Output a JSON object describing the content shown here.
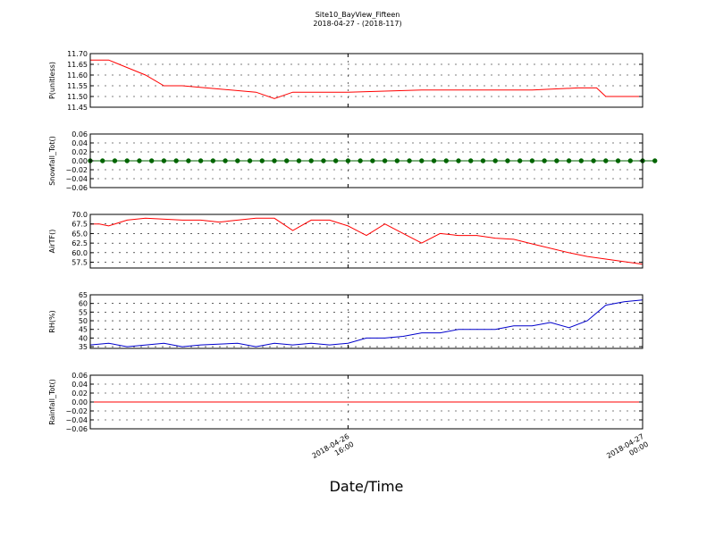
{
  "figure": {
    "title": "Site10_BayView_Fifteen",
    "subtitle": "2018-04-27 - (2018-117)",
    "xlabel": "Date/Time",
    "x_ticks": [
      {
        "value": "2018-04-26 16:00",
        "line1": "2018-04-26",
        "line2": "16:00"
      },
      {
        "value": "2018-04-27 00:00",
        "line1": "2018-04-27",
        "line2": "00:00"
      }
    ],
    "x_range": [
      "2018-04-26 09:00",
      "2018-04-27 00:00"
    ]
  },
  "chart_data": [
    {
      "type": "line",
      "ylabel": "P(unitless)",
      "ylim": [
        11.45,
        11.7
      ],
      "yticks": [
        "11.45",
        "11.50",
        "11.55",
        "11.60",
        "11.65",
        "11.70"
      ],
      "color": "#ff0000",
      "marker": "none",
      "grid": true,
      "x": [
        "2018-04-26 09:00",
        "2018-04-26 09:30",
        "2018-04-26 10:30",
        "2018-04-26 11:00",
        "2018-04-26 11:30",
        "2018-04-26 13:30",
        "2018-04-26 14:00",
        "2018-04-26 14:30",
        "2018-04-26 16:00",
        "2018-04-26 18:00",
        "2018-04-26 21:00",
        "2018-04-26 22:15",
        "2018-04-26 22:45",
        "2018-04-26 23:00",
        "2018-04-27 00:00"
      ],
      "y": [
        11.67,
        11.67,
        11.6,
        11.55,
        11.55,
        11.52,
        11.49,
        11.52,
        11.52,
        11.53,
        11.53,
        11.54,
        11.54,
        11.5,
        11.5
      ]
    },
    {
      "type": "line",
      "ylabel": "Snowfall_Tot()",
      "ylim": [
        -0.06,
        0.06
      ],
      "yticks": [
        "−0.06",
        "−0.04",
        "−0.02",
        "0.00",
        "0.02",
        "0.04",
        "0.06"
      ],
      "color": "#006400",
      "marker": "circle",
      "grid": true,
      "x_step_minutes": 20,
      "x_start": "2018-04-26 09:00",
      "y": [
        0,
        0,
        0,
        0,
        0,
        0,
        0,
        0,
        0,
        0,
        0,
        0,
        0,
        0,
        0,
        0,
        0,
        0,
        0,
        0,
        0,
        0,
        0,
        0,
        0,
        0,
        0,
        0,
        0,
        0,
        0,
        0,
        0,
        0,
        0,
        0,
        0,
        0,
        0,
        0,
        0,
        0,
        0,
        0,
        0,
        0,
        0
      ]
    },
    {
      "type": "line",
      "ylabel": "AirTF()",
      "ylim": [
        56.0,
        70.0
      ],
      "yticks": [
        "57.5",
        "60.0",
        "62.5",
        "65.0",
        "67.5",
        "70.0"
      ],
      "color": "#ff0000",
      "marker": "none",
      "grid": true,
      "x": [
        "2018-04-26 09:00",
        "2018-04-26 09:15",
        "2018-04-26 09:30",
        "2018-04-26 10:00",
        "2018-04-26 10:30",
        "2018-04-26 11:30",
        "2018-04-26 12:00",
        "2018-04-26 12:30",
        "2018-04-26 13:30",
        "2018-04-26 14:00",
        "2018-04-26 14:30",
        "2018-04-26 15:00",
        "2018-04-26 15:30",
        "2018-04-26 16:00",
        "2018-04-26 16:30",
        "2018-04-26 17:00",
        "2018-04-26 17:30",
        "2018-04-26 18:00",
        "2018-04-26 18:30",
        "2018-04-26 19:00",
        "2018-04-26 19:30",
        "2018-04-26 20:00",
        "2018-04-26 20:30",
        "2018-04-26 21:00",
        "2018-04-26 22:00",
        "2018-04-26 22:30",
        "2018-04-27 00:00"
      ],
      "y": [
        67.5,
        67.5,
        67.0,
        68.5,
        69.0,
        68.5,
        68.5,
        68.0,
        69.0,
        69.0,
        65.8,
        68.5,
        68.5,
        67.0,
        64.5,
        67.5,
        65.0,
        62.5,
        65.0,
        64.5,
        64.5,
        63.8,
        63.5,
        62.3,
        60.0,
        59.0,
        57.0
      ]
    },
    {
      "type": "line",
      "ylabel": "RH(%)",
      "ylim": [
        34,
        65
      ],
      "yticks": [
        "35",
        "40",
        "45",
        "50",
        "55",
        "60",
        "65"
      ],
      "color": "#0000cc",
      "marker": "none",
      "grid": true,
      "x": [
        "2018-04-26 09:00",
        "2018-04-26 09:30",
        "2018-04-26 10:00",
        "2018-04-26 11:00",
        "2018-04-26 11:30",
        "2018-04-26 12:00",
        "2018-04-26 13:00",
        "2018-04-26 13:30",
        "2018-04-26 14:00",
        "2018-04-26 14:30",
        "2018-04-26 15:00",
        "2018-04-26 15:30",
        "2018-04-26 16:00",
        "2018-04-26 16:30",
        "2018-04-26 17:00",
        "2018-04-26 17:30",
        "2018-04-26 18:00",
        "2018-04-26 18:30",
        "2018-04-26 19:00",
        "2018-04-26 19:30",
        "2018-04-26 20:00",
        "2018-04-26 20:30",
        "2018-04-26 21:00",
        "2018-04-26 21:30",
        "2018-04-26 22:00",
        "2018-04-26 22:30",
        "2018-04-26 23:00",
        "2018-04-26 23:30",
        "2018-04-27 00:00"
      ],
      "y": [
        36,
        37,
        35,
        37,
        35,
        36,
        37,
        35,
        37,
        36,
        37,
        36,
        37,
        40,
        40,
        41,
        43,
        43,
        45,
        45,
        45,
        47,
        47,
        49,
        46,
        50,
        59,
        61,
        62
      ]
    },
    {
      "type": "line",
      "ylabel": "Rainfall_Tot()",
      "ylim": [
        -0.06,
        0.06
      ],
      "yticks": [
        "−0.06",
        "−0.04",
        "−0.02",
        "0.00",
        "0.02",
        "0.04",
        "0.06"
      ],
      "color": "#ff0000",
      "marker": "none",
      "grid": true,
      "x": [
        "2018-04-26 09:00",
        "2018-04-27 00:00"
      ],
      "y": [
        0,
        0
      ]
    }
  ]
}
